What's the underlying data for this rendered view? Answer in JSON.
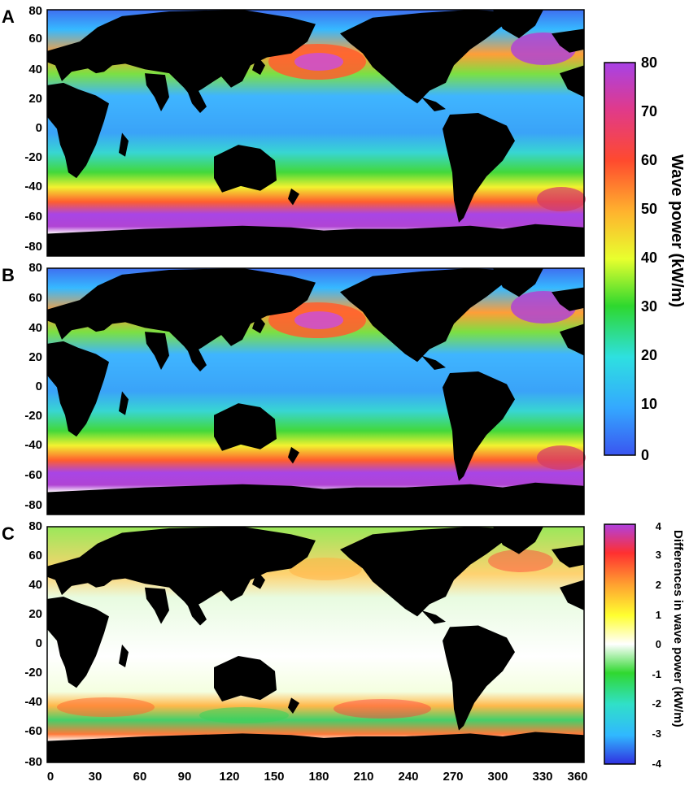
{
  "figure": {
    "panel_labels": [
      "A",
      "B",
      "C"
    ],
    "x_axis": {
      "ticks": [
        "0",
        "30",
        "60",
        "90",
        "120",
        "150",
        "180",
        "210",
        "240",
        "270",
        "300",
        "330",
        "360"
      ],
      "range": [
        0,
        360
      ]
    },
    "y_axis": {
      "ticks": [
        "80",
        "60",
        "40",
        "20",
        "0",
        "-20",
        "-40",
        "-60",
        "-80"
      ],
      "range": [
        -80,
        80
      ]
    },
    "colorbar_main": {
      "title": "Wave power (kW/m)",
      "ticks": [
        "80",
        "70",
        "60",
        "50",
        "40",
        "30",
        "20",
        "10",
        "0"
      ],
      "range": [
        0,
        80
      ],
      "colors": [
        "#3a55f0",
        "#34a8ff",
        "#2ee0e0",
        "#2ed82e",
        "#e8ff2e",
        "#ffb32e",
        "#ff4a2e",
        "#e03a8a",
        "#a842e6"
      ]
    },
    "colorbar_diff": {
      "title": "Differences in wave power (kW/m)",
      "ticks": [
        "4",
        "3",
        "2",
        "1",
        "0",
        "-1",
        "-2",
        "-3",
        "-4"
      ],
      "range": [
        -4,
        4
      ],
      "colors": [
        "#3030e0",
        "#30b8ff",
        "#30e0c8",
        "#30d830",
        "#ffffff",
        "#ffff30",
        "#ffa030",
        "#ff3030",
        "#b040e0"
      ]
    },
    "land_color": "#000000",
    "ice_color": "#ffffff"
  }
}
